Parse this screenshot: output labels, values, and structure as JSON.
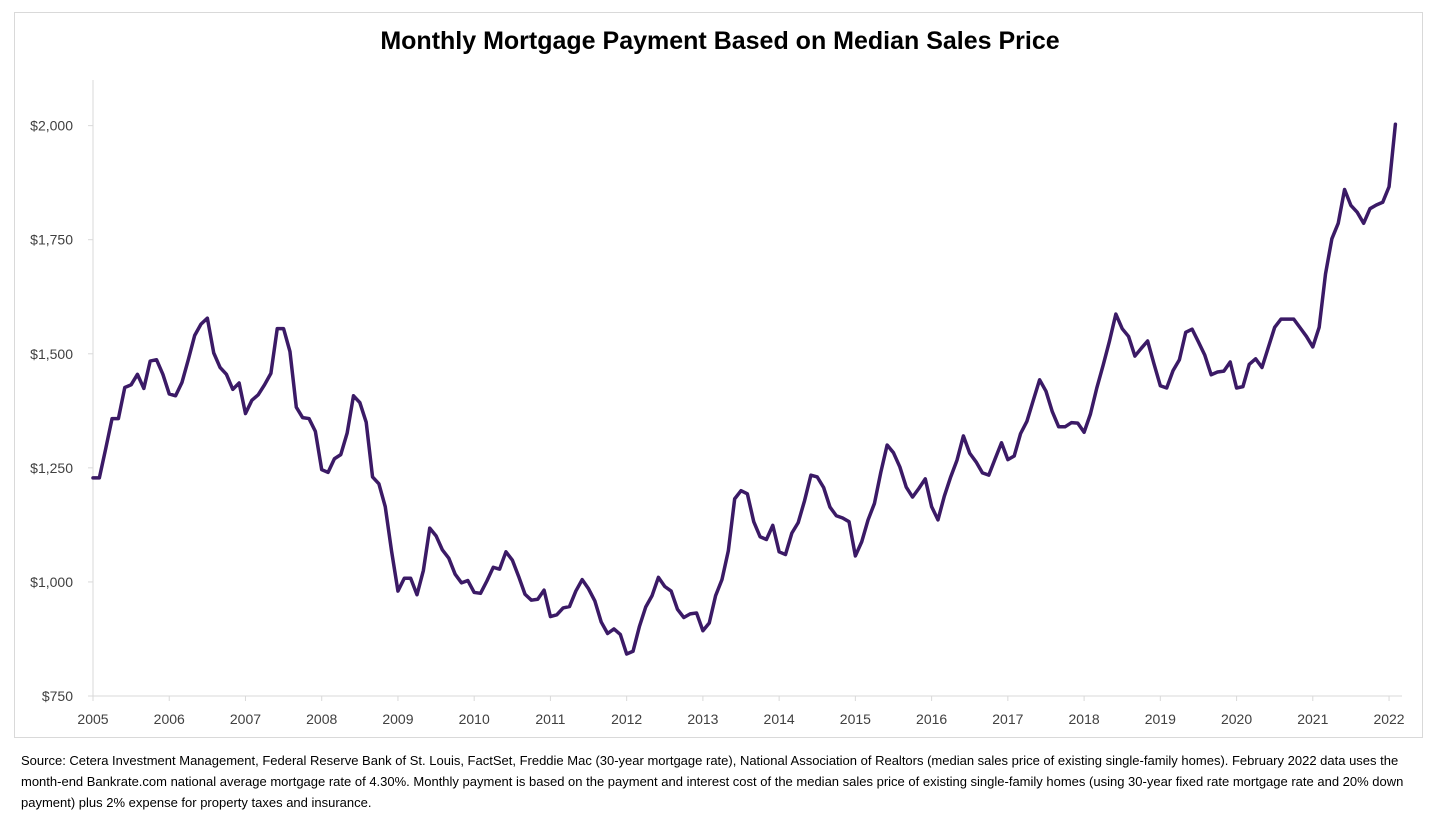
{
  "chart_data": {
    "type": "line",
    "title": "Monthly Mortgage Payment Based on Median Sales Price",
    "xlabel": "",
    "ylabel": "",
    "x_start": 2005,
    "x_end": 2022.17,
    "ylim": [
      750,
      2100
    ],
    "y_ticks": [
      750,
      1000,
      1250,
      1500,
      1750,
      2000
    ],
    "y_tick_labels": [
      "$750",
      "$1,000",
      "$1,250",
      "$1,500",
      "$1,750",
      "$2,000"
    ],
    "x_ticks": [
      2005,
      2006,
      2007,
      2008,
      2009,
      2010,
      2011,
      2012,
      2013,
      2014,
      2015,
      2016,
      2017,
      2018,
      2019,
      2020,
      2021,
      2022
    ],
    "x_tick_labels": [
      "2005",
      "2006",
      "2007",
      "2008",
      "2009",
      "2010",
      "2011",
      "2012",
      "2013",
      "2014",
      "2015",
      "2016",
      "2017",
      "2018",
      "2019",
      "2020",
      "2021",
      "2022"
    ],
    "grid": false,
    "series": [
      {
        "name": "Monthly Mortgage Payment",
        "color": "#3b1a66",
        "start": "2005-01",
        "values": [
          1228,
          1228,
          1292,
          1358,
          1358,
          1426,
          1432,
          1455,
          1424,
          1484,
          1487,
          1455,
          1412,
          1408,
          1437,
          1487,
          1540,
          1565,
          1578,
          1502,
          1470,
          1455,
          1422,
          1436,
          1369,
          1398,
          1410,
          1432,
          1457,
          1555,
          1555,
          1505,
          1383,
          1360,
          1358,
          1330,
          1246,
          1240,
          1270,
          1279,
          1326,
          1408,
          1393,
          1350,
          1230,
          1215,
          1165,
          1067,
          980,
          1008,
          1008,
          972,
          1025,
          1118,
          1101,
          1070,
          1052,
          1017,
          998,
          1003,
          977,
          975,
          1002,
          1032,
          1028,
          1066,
          1048,
          1012,
          973,
          960,
          962,
          982,
          924,
          928,
          943,
          946,
          980,
          1005,
          985,
          958,
          912,
          887,
          897,
          885,
          842,
          848,
          902,
          945,
          970,
          1010,
          990,
          980,
          940,
          922,
          930,
          932,
          893,
          910,
          970,
          1005,
          1068,
          1182,
          1200,
          1193,
          1132,
          1099,
          1093,
          1124,
          1066,
          1060,
          1107,
          1130,
          1178,
          1234,
          1230,
          1207,
          1164,
          1145,
          1140,
          1132,
          1057,
          1088,
          1136,
          1172,
          1240,
          1300,
          1283,
          1252,
          1208,
          1186,
          1205,
          1226,
          1165,
          1136,
          1188,
          1230,
          1267,
          1320,
          1282,
          1263,
          1239,
          1234,
          1270,
          1305,
          1268,
          1276,
          1325,
          1352,
          1398,
          1443,
          1418,
          1373,
          1340,
          1340,
          1349,
          1348,
          1328,
          1368,
          1425,
          1475,
          1528,
          1587,
          1555,
          1538,
          1495,
          1512,
          1528,
          1478,
          1430,
          1425,
          1463,
          1487,
          1547,
          1554,
          1526,
          1497,
          1454,
          1460,
          1462,
          1482,
          1425,
          1428,
          1477,
          1489,
          1470,
          1514,
          1558,
          1576,
          1576,
          1576,
          1557,
          1538,
          1515,
          1558,
          1675,
          1752,
          1786,
          1860,
          1825,
          1810,
          1786,
          1818,
          1826,
          1832,
          1866,
          2003
        ]
      }
    ]
  },
  "source": "Source: Cetera Investment Management, Federal Reserve Bank of St. Louis, FactSet, Freddie Mac (30-year mortgage rate), National Association of Realtors (median sales price of existing single-family homes). February 2022 data uses the month-end Bankrate.com national average mortgage rate of 4.30%. Monthly payment is based on the payment and interest cost of the median sales price of existing single-family homes (using 30-year fixed rate mortgage rate and 20% down payment) plus 2% expense for property taxes and insurance."
}
